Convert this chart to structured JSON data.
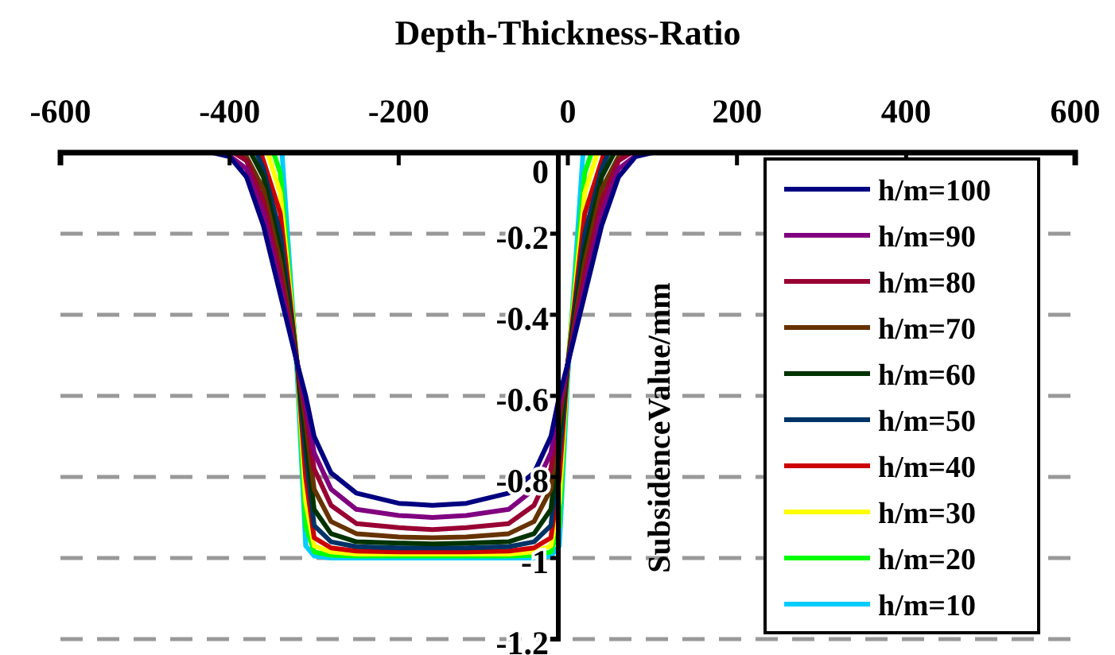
{
  "chart_data": {
    "type": "line",
    "title": "Depth-Thickness-Ratio",
    "ylabel": "SubsidenceValue/mm",
    "xlim": [
      -600,
      600
    ],
    "xticks": [
      -600,
      -400,
      -200,
      0,
      200,
      400,
      600
    ],
    "ylim": [
      -1.2,
      0
    ],
    "yticks": [
      0,
      -0.2,
      -0.4,
      -0.6,
      -0.8,
      -1,
      -1.2
    ],
    "grid": "y",
    "legend": "right",
    "line_style": "solid",
    "marker": "none",
    "series": [
      {
        "name": "h/m=100",
        "color": "#000080",
        "x": [
          -420,
          -400,
          -380,
          -360,
          -340,
          -320,
          -310,
          -300,
          -280,
          -250,
          -200,
          -160,
          -120,
          -70,
          -40,
          -20,
          -10,
          0,
          20,
          40,
          60,
          80,
          100
        ],
        "values": [
          0,
          -0.01,
          -0.06,
          -0.18,
          -0.35,
          -0.52,
          -0.6,
          -0.7,
          -0.79,
          -0.84,
          -0.865,
          -0.87,
          -0.865,
          -0.84,
          -0.79,
          -0.7,
          -0.6,
          -0.52,
          -0.35,
          -0.18,
          -0.06,
          -0.01,
          0
        ]
      },
      {
        "name": "h/m=90",
        "color": "#800080",
        "x": [
          -405,
          -380,
          -360,
          -340,
          -320,
          -310,
          -300,
          -280,
          -250,
          -200,
          -160,
          -120,
          -70,
          -40,
          -20,
          -10,
          0,
          20,
          40,
          60,
          85
        ],
        "values": [
          0,
          -0.04,
          -0.15,
          -0.33,
          -0.52,
          -0.62,
          -0.74,
          -0.83,
          -0.88,
          -0.895,
          -0.9,
          -0.895,
          -0.88,
          -0.83,
          -0.74,
          -0.62,
          -0.52,
          -0.33,
          -0.15,
          -0.04,
          0
        ]
      },
      {
        "name": "h/m=80",
        "color": "#990033",
        "x": [
          -395,
          -380,
          -360,
          -340,
          -320,
          -310,
          -300,
          -280,
          -250,
          -200,
          -160,
          -120,
          -70,
          -40,
          -20,
          -10,
          0,
          20,
          40,
          60,
          75
        ],
        "values": [
          0,
          -0.02,
          -0.12,
          -0.3,
          -0.52,
          -0.64,
          -0.78,
          -0.87,
          -0.915,
          -0.925,
          -0.93,
          -0.925,
          -0.915,
          -0.87,
          -0.78,
          -0.64,
          -0.52,
          -0.3,
          -0.12,
          -0.02,
          0
        ]
      },
      {
        "name": "h/m=70",
        "color": "#663300",
        "x": [
          -390,
          -380,
          -360,
          -340,
          -320,
          -310,
          -300,
          -280,
          -250,
          -200,
          -160,
          -120,
          -70,
          -40,
          -20,
          -10,
          0,
          20,
          40,
          60,
          70
        ],
        "values": [
          0,
          -0.01,
          -0.09,
          -0.27,
          -0.52,
          -0.66,
          -0.83,
          -0.91,
          -0.94,
          -0.948,
          -0.95,
          -0.948,
          -0.94,
          -0.91,
          -0.83,
          -0.66,
          -0.52,
          -0.27,
          -0.09,
          -0.01,
          0
        ]
      },
      {
        "name": "h/m=60",
        "color": "#003300",
        "x": [
          -375,
          -360,
          -340,
          -320,
          -310,
          -300,
          -280,
          -250,
          -200,
          -160,
          -120,
          -70,
          -40,
          -20,
          -10,
          0,
          20,
          40,
          55
        ],
        "values": [
          0,
          -0.06,
          -0.24,
          -0.52,
          -0.7,
          -0.88,
          -0.94,
          -0.96,
          -0.963,
          -0.965,
          -0.963,
          -0.96,
          -0.94,
          -0.88,
          -0.7,
          -0.52,
          -0.24,
          -0.06,
          0
        ]
      },
      {
        "name": "h/m=50",
        "color": "#003366",
        "x": [
          -368,
          -360,
          -340,
          -320,
          -310,
          -300,
          -280,
          -250,
          -200,
          -160,
          -120,
          -70,
          -40,
          -20,
          -10,
          0,
          20,
          40,
          48
        ],
        "values": [
          0,
          -0.04,
          -0.2,
          -0.52,
          -0.74,
          -0.92,
          -0.96,
          -0.972,
          -0.975,
          -0.975,
          -0.975,
          -0.972,
          -0.96,
          -0.92,
          -0.74,
          -0.52,
          -0.2,
          -0.04,
          0
        ]
      },
      {
        "name": "h/m=40",
        "color": "#cc0000",
        "x": [
          -363,
          -360,
          -340,
          -320,
          -310,
          -300,
          -280,
          -250,
          -200,
          -160,
          -120,
          -70,
          -40,
          -20,
          -10,
          0,
          20,
          40,
          43
        ],
        "values": [
          0,
          -0.02,
          -0.15,
          -0.52,
          -0.8,
          -0.95,
          -0.975,
          -0.983,
          -0.985,
          -0.985,
          -0.985,
          -0.983,
          -0.975,
          -0.95,
          -0.8,
          -0.52,
          -0.15,
          -0.02,
          0
        ]
      },
      {
        "name": "h/m=30",
        "color": "#ffff00",
        "x": [
          -355,
          -340,
          -320,
          -310,
          -300,
          -280,
          -250,
          -200,
          -160,
          -120,
          -70,
          -40,
          -20,
          -10,
          0,
          20,
          35
        ],
        "values": [
          0,
          -0.1,
          -0.52,
          -0.86,
          -0.97,
          -0.985,
          -0.99,
          -0.99,
          -0.99,
          -0.99,
          -0.99,
          -0.985,
          -0.97,
          -0.86,
          -0.52,
          -0.1,
          0
        ]
      },
      {
        "name": "h/m=20",
        "color": "#00ff00",
        "x": [
          -348,
          -340,
          -320,
          -310,
          -300,
          -280,
          -250,
          -200,
          -160,
          -120,
          -70,
          -40,
          -20,
          -10,
          0,
          20,
          28
        ],
        "values": [
          0,
          -0.05,
          -0.52,
          -0.92,
          -0.985,
          -0.993,
          -0.995,
          -0.995,
          -0.995,
          -0.995,
          -0.995,
          -0.993,
          -0.985,
          -0.92,
          -0.52,
          -0.05,
          0
        ]
      },
      {
        "name": "h/m=10",
        "color": "#00ccff",
        "x": [
          -520,
          -338,
          -320,
          -310,
          -300,
          -280,
          -250,
          -200,
          -160,
          -120,
          -70,
          -40,
          -20,
          -10,
          0,
          18,
          510
        ],
        "values": [
          0,
          0,
          -0.55,
          -0.97,
          -0.995,
          -1,
          -1,
          -1,
          -1,
          -1,
          -1,
          -1,
          -0.995,
          -0.97,
          -0.55,
          0,
          0
        ]
      }
    ]
  }
}
